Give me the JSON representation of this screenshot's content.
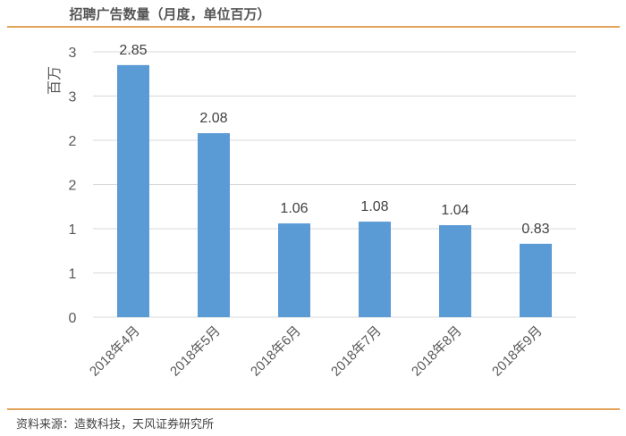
{
  "header": {
    "title": "招聘广告数量（月度，单位百万）"
  },
  "footer": {
    "source": "资料来源：造数科技，天风证券研究所"
  },
  "colors": {
    "bar": "#5b9bd5",
    "rule": "#e3a35a",
    "grid": "#d9d9d9"
  },
  "chart_data": {
    "type": "bar",
    "title": "招聘广告数量（月度，单位百万）",
    "xlabel": "",
    "ylabel": "百万",
    "categories": [
      "2018年4月",
      "2018年5月",
      "2018年6月",
      "2018年7月",
      "2018年8月",
      "2018年9月"
    ],
    "values": [
      2.85,
      2.08,
      1.06,
      1.08,
      1.04,
      0.83
    ],
    "data_labels": [
      "2.85",
      "2.08",
      "1.06",
      "1.08",
      "1.04",
      "0.83"
    ],
    "ylim": [
      0,
      3
    ],
    "yticks": [
      0,
      0.5,
      1,
      1.5,
      2,
      2.5,
      3
    ],
    "ytick_labels": [
      "0",
      "1",
      "1",
      "2",
      "2",
      "3",
      "3"
    ],
    "grid": true,
    "legend": "none"
  }
}
